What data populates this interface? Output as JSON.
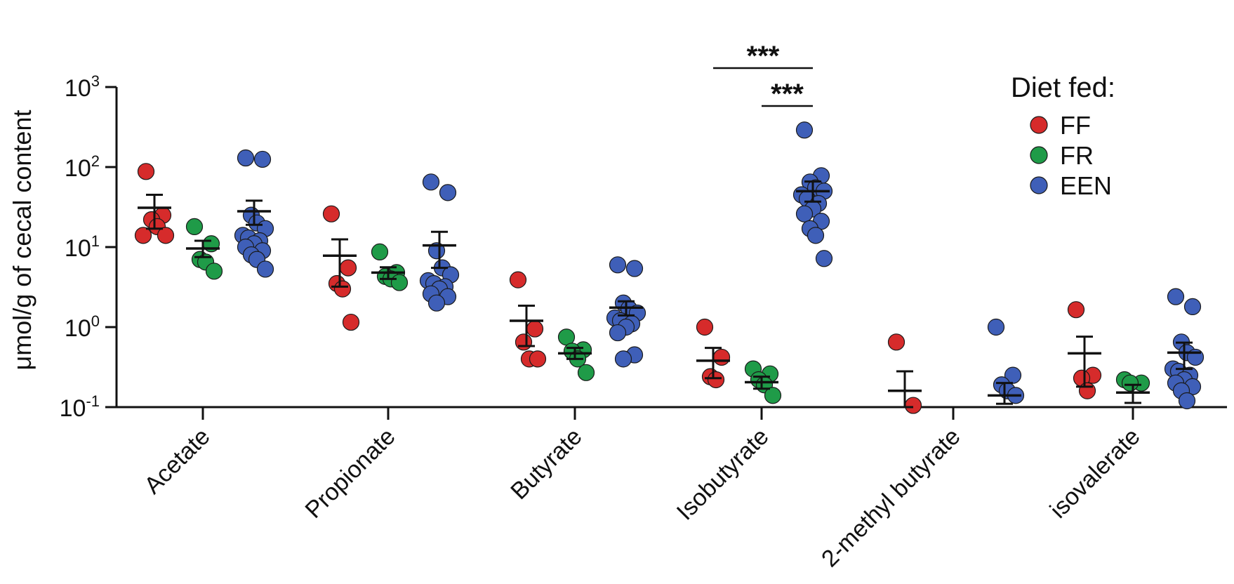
{
  "chart_data": {
    "type": "scatter",
    "title": "",
    "xlabel": "",
    "ylabel": "μmol/g of cecal content",
    "yscale": "log",
    "ylim": [
      0.1,
      1000
    ],
    "yticks": [
      {
        "value": 1000,
        "base": "10",
        "exp": "3"
      },
      {
        "value": 100,
        "base": "10",
        "exp": "2"
      },
      {
        "value": 10,
        "base": "10",
        "exp": "1"
      },
      {
        "value": 1,
        "base": "10",
        "exp": "0"
      },
      {
        "value": 0.1,
        "base": "10",
        "exp": "-1"
      }
    ],
    "categories": [
      "Acetate",
      "Propionate",
      "Butyrate",
      "Isobutyrate",
      "2-methyl butyrate",
      "isovalerate"
    ],
    "legend": {
      "title": "Diet fed:",
      "position": "top-right",
      "entries": [
        {
          "label": "FF",
          "color": "#d62b2b"
        },
        {
          "label": "FR",
          "color": "#1f9b48"
        },
        {
          "label": "EEN",
          "color": "#3f5fb8"
        }
      ]
    },
    "series": [
      {
        "name": "FF",
        "color": "#d62b2b",
        "groups": [
          {
            "category": "Acetate",
            "points": [
              88,
              25,
              22,
              18,
              14,
              14
            ],
            "mean": 31,
            "error": [
              17,
              45
            ]
          },
          {
            "category": "Propionate",
            "points": [
              26,
              5.5,
              3.5,
              3.0,
              1.15
            ],
            "mean": 7.8,
            "error": [
              3.2,
              12.5
            ]
          },
          {
            "category": "Butyrate",
            "points": [
              3.9,
              0.95,
              0.65,
              0.4,
              0.4
            ],
            "mean": 1.2,
            "error": [
              0.58,
              1.85
            ]
          },
          {
            "category": "Isobutyrate",
            "points": [
              1.0,
              0.42,
              0.24,
              0.22
            ],
            "mean": 0.38,
            "error": [
              0.23,
              0.55
            ]
          },
          {
            "category": "2-methyl butyrate",
            "points": [
              0.65,
              0.105
            ],
            "mean": 0.16,
            "error": [
              0.1,
              0.28
            ]
          },
          {
            "category": "isovalerate",
            "points": [
              1.65,
              0.25,
              0.23,
              0.16
            ],
            "mean": 0.47,
            "error": [
              0.18,
              0.76
            ]
          }
        ]
      },
      {
        "name": "FR",
        "color": "#1f9b48",
        "groups": [
          {
            "category": "Acetate",
            "points": [
              18,
              11,
              7,
              6.5,
              5.0
            ],
            "mean": 9.6,
            "error": [
              7.5,
              12
            ]
          },
          {
            "category": "Propionate",
            "points": [
              8.7,
              4.8,
              4.3,
              4.0,
              3.6
            ],
            "mean": 4.8,
            "error": [
              4.0,
              5.6
            ]
          },
          {
            "category": "Butyrate",
            "points": [
              0.75,
              0.52,
              0.5,
              0.4,
              0.27
            ],
            "mean": 0.47,
            "error": [
              0.4,
              0.55
            ]
          },
          {
            "category": "Isobutyrate",
            "points": [
              0.3,
              0.26,
              0.22,
              0.19,
              0.14
            ],
            "mean": 0.205,
            "error": [
              0.17,
              0.24
            ]
          },
          {
            "category": "isovalerate",
            "points": [
              0.22,
              0.2,
              0.2
            ],
            "mean": 0.152,
            "error": [
              0.113,
              0.19
            ]
          }
        ]
      },
      {
        "name": "EEN",
        "color": "#3f5fb8",
        "groups": [
          {
            "category": "Acetate",
            "points": [
              130,
              125,
              25,
              20,
              17,
              14,
              13,
              12,
              11,
              10,
              9,
              8,
              7,
              5.3
            ],
            "mean": 28,
            "error": [
              19,
              38
            ]
          },
          {
            "category": "Propionate",
            "points": [
              65,
              48,
              9.0,
              5.5,
              4.5,
              3.8,
              3.5,
              3.2,
              3.0,
              2.6,
              2.4,
              2.0
            ],
            "mean": 10.5,
            "error": [
              5.5,
              15.5
            ]
          },
          {
            "category": "Butyrate",
            "points": [
              6.0,
              5.4,
              2.0,
              1.7,
              1.5,
              1.3,
              1.2,
              1.1,
              1.0,
              0.85,
              0.45,
              0.4
            ],
            "mean": 1.75,
            "error": [
              1.4,
              2.1
            ]
          },
          {
            "category": "Isobutyrate",
            "points": [
              290,
              78,
              65,
              55,
              50,
              45,
              40,
              35,
              30,
              26,
              21,
              17,
              14,
              7.2
            ],
            "mean": 50,
            "error": [
              37,
              66
            ]
          },
          {
            "category": "2-methyl butyrate",
            "points": [
              1.0,
              0.25,
              0.19,
              0.16,
              0.14
            ],
            "mean": 0.14,
            "error": [
              0.11,
              0.2
            ]
          },
          {
            "category": "isovalerate",
            "points": [
              2.4,
              1.8,
              0.65,
              0.48,
              0.42,
              0.3,
              0.28,
              0.25,
              0.22,
              0.2,
              0.18,
              0.16,
              0.12
            ],
            "mean": 0.48,
            "error": [
              0.3,
              0.64
            ]
          }
        ]
      }
    ],
    "annotations": [
      {
        "text": "***",
        "category": "Isobutyrate",
        "from_series": "FF",
        "to_series": "EEN"
      },
      {
        "text": "***",
        "category": "Isobutyrate",
        "from_series": "FR",
        "to_series": "EEN"
      }
    ]
  }
}
